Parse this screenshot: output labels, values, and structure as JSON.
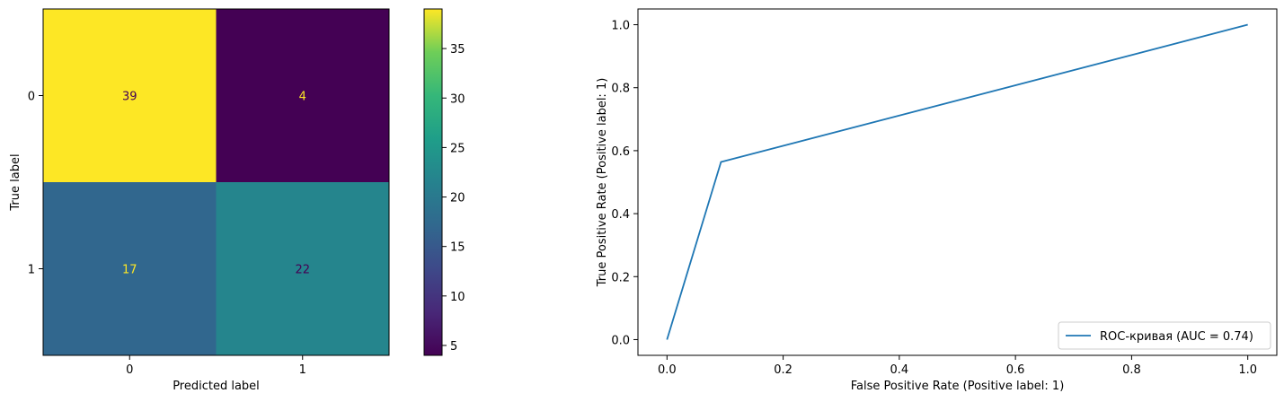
{
  "chart_data": [
    {
      "type": "heatmap",
      "display_labels": [
        "0",
        "1"
      ],
      "matrix": [
        [
          39,
          4
        ],
        [
          17,
          22
        ]
      ],
      "xlabel": "Predicted label",
      "ylabel": "True label",
      "colormap": "viridis",
      "colorbar": {
        "min": 4,
        "max": 39,
        "ticks": [
          5,
          10,
          15,
          20,
          25,
          30,
          35
        ],
        "tick_labels": [
          "5",
          "10",
          "15",
          "20",
          "25",
          "30",
          "35"
        ]
      },
      "text_colors": {
        "on_dark": "#fde725",
        "on_light": "#440154"
      }
    },
    {
      "type": "line",
      "series": [
        {
          "name": "ROC-кривая (AUC = 0.74)",
          "x": [
            0.0,
            0.093,
            1.0
          ],
          "y": [
            0.0,
            0.564,
            1.0
          ],
          "color": "#1f77b4"
        }
      ],
      "xlabel": "False Positive Rate (Positive label: 1)",
      "ylabel": "True Positive Rate (Positive label: 1)",
      "xlim": [
        -0.05,
        1.05
      ],
      "ylim": [
        -0.05,
        1.05
      ],
      "xticks": [
        0.0,
        0.2,
        0.4,
        0.6,
        0.8,
        1.0
      ],
      "xtick_labels": [
        "0.0",
        "0.2",
        "0.4",
        "0.6",
        "0.8",
        "1.0"
      ],
      "yticks": [
        0.0,
        0.2,
        0.4,
        0.6,
        0.8,
        1.0
      ],
      "ytick_labels": [
        "0.0",
        "0.2",
        "0.4",
        "0.6",
        "0.8",
        "1.0"
      ],
      "grid": false,
      "legend_position": "lower right"
    }
  ]
}
